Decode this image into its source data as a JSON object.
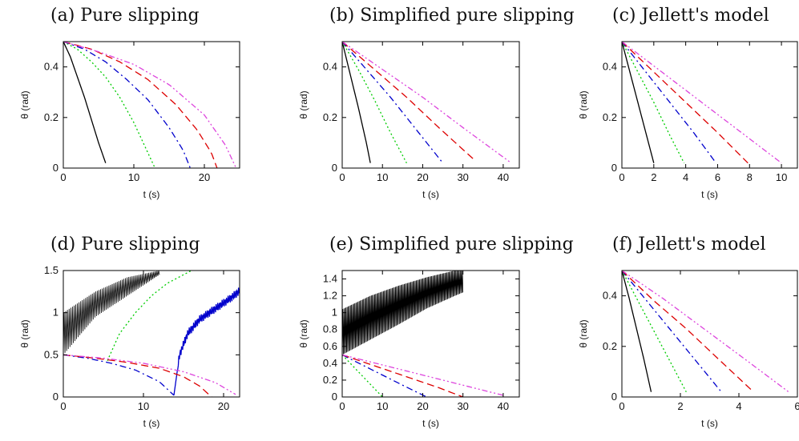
{
  "colors": {
    "black": "#000000",
    "green": "#00cc00",
    "blue": "#0000cc",
    "red": "#dd0000",
    "magenta": "#dd44dd"
  },
  "chart_data": [
    {
      "id": "a",
      "type": "line",
      "title": "(a) Pure slipping",
      "xlabel": "t (s)",
      "ylabel": "θ (rad)",
      "xlim": [
        0,
        25
      ],
      "ylim": [
        0,
        0.5
      ],
      "xticks": [
        0,
        10,
        20
      ],
      "yticks": [
        0,
        0.2,
        0.4
      ],
      "series": [
        {
          "color": "black",
          "style": "solid",
          "x": [
            0,
            1,
            2,
            3,
            4,
            5,
            6
          ],
          "y": [
            0.5,
            0.44,
            0.36,
            0.28,
            0.19,
            0.1,
            0.02
          ]
        },
        {
          "color": "green",
          "style": "dotted",
          "x": [
            0,
            2,
            4,
            6,
            8,
            10,
            12,
            13
          ],
          "y": [
            0.5,
            0.47,
            0.42,
            0.36,
            0.28,
            0.18,
            0.06,
            0.0
          ]
        },
        {
          "color": "blue",
          "style": "dashdot",
          "x": [
            0,
            3,
            6,
            9,
            12,
            15,
            17,
            18
          ],
          "y": [
            0.5,
            0.47,
            0.42,
            0.35,
            0.27,
            0.16,
            0.07,
            0.0
          ]
        },
        {
          "color": "red",
          "style": "dashed",
          "x": [
            0,
            4,
            8,
            12,
            16,
            19,
            21,
            21.8
          ],
          "y": [
            0.5,
            0.47,
            0.42,
            0.35,
            0.25,
            0.15,
            0.06,
            0.0
          ]
        },
        {
          "color": "magenta",
          "style": "dashdotdot",
          "x": [
            0,
            5,
            10,
            15,
            20,
            23,
            24.5
          ],
          "y": [
            0.5,
            0.46,
            0.41,
            0.33,
            0.21,
            0.09,
            0.0
          ]
        }
      ]
    },
    {
      "id": "b",
      "type": "line",
      "title": "(b) Simplified pure slipping",
      "xlabel": "t (s)",
      "ylabel": "θ (rad)",
      "xlim": [
        0,
        44
      ],
      "ylim": [
        0,
        0.5
      ],
      "xticks": [
        0,
        10,
        20,
        30,
        40
      ],
      "yticks": [
        0,
        0.2,
        0.4
      ],
      "series": [
        {
          "color": "black",
          "style": "solid",
          "x": [
            0,
            2,
            4,
            6,
            7
          ],
          "y": [
            0.5,
            0.37,
            0.24,
            0.1,
            0.02
          ]
        },
        {
          "color": "green",
          "style": "dotted",
          "x": [
            0,
            4,
            8,
            12,
            16
          ],
          "y": [
            0.5,
            0.39,
            0.27,
            0.14,
            0.02
          ]
        },
        {
          "color": "blue",
          "style": "dashdot",
          "x": [
            0,
            6,
            12,
            18,
            25
          ],
          "y": [
            0.5,
            0.39,
            0.28,
            0.16,
            0.02
          ]
        },
        {
          "color": "red",
          "style": "dashed",
          "x": [
            0,
            8,
            16,
            24,
            33
          ],
          "y": [
            0.5,
            0.39,
            0.28,
            0.16,
            0.03
          ]
        },
        {
          "color": "magenta",
          "style": "dashdotdot",
          "x": [
            0,
            10,
            20,
            30,
            42
          ],
          "y": [
            0.5,
            0.39,
            0.28,
            0.16,
            0.02
          ]
        }
      ]
    },
    {
      "id": "c",
      "type": "line",
      "title": "(c) Jellett's model",
      "xlabel": "t (s)",
      "ylabel": "θ (rad)",
      "xlim": [
        0,
        11
      ],
      "ylim": [
        0,
        0.5
      ],
      "xticks": [
        0,
        2,
        4,
        6,
        8,
        10
      ],
      "yticks": [
        0,
        0.2,
        0.4
      ],
      "series": [
        {
          "color": "black",
          "style": "solid",
          "x": [
            0,
            0.5,
            1,
            1.5,
            2
          ],
          "y": [
            0.5,
            0.38,
            0.26,
            0.14,
            0.02
          ]
        },
        {
          "color": "green",
          "style": "dotted",
          "x": [
            0,
            1,
            2,
            3,
            3.9
          ],
          "y": [
            0.5,
            0.38,
            0.26,
            0.13,
            0.02
          ]
        },
        {
          "color": "blue",
          "style": "dashdot",
          "x": [
            0,
            1.5,
            3,
            4.5,
            5.9
          ],
          "y": [
            0.5,
            0.38,
            0.26,
            0.14,
            0.02
          ]
        },
        {
          "color": "red",
          "style": "dashed",
          "x": [
            0,
            2,
            4,
            6,
            7.9
          ],
          "y": [
            0.5,
            0.38,
            0.26,
            0.14,
            0.02
          ]
        },
        {
          "color": "magenta",
          "style": "dashdotdot",
          "x": [
            0,
            2.5,
            5,
            7.5,
            10
          ],
          "y": [
            0.5,
            0.38,
            0.26,
            0.14,
            0.02
          ]
        }
      ]
    },
    {
      "id": "d",
      "type": "line",
      "title": "(d) Pure slipping",
      "xlabel": "t (s)",
      "ylabel": "θ (rad)",
      "xlim": [
        0,
        22
      ],
      "ylim": [
        0,
        1.5
      ],
      "xticks": [
        0,
        10,
        20
      ],
      "yticks": [
        0,
        0.5,
        1,
        1.5
      ],
      "series": [
        {
          "color": "black",
          "style": "oscillation",
          "x": [
            0,
            4,
            8,
            12
          ],
          "y": [
            0.5,
            0.95,
            1.2,
            1.45
          ],
          "upper": [
            1.0,
            1.25,
            1.42,
            1.5
          ],
          "periods": 58
        },
        {
          "color": "green",
          "style": "dotted",
          "x": [
            5.5,
            7,
            9,
            11,
            13,
            16
          ],
          "y": [
            0.43,
            0.75,
            1.0,
            1.2,
            1.35,
            1.5
          ]
        },
        {
          "color": "blue",
          "style": "noisy",
          "x": [
            13.8,
            14.5,
            15.5,
            17,
            19,
            21,
            22
          ],
          "y": [
            0.02,
            0.5,
            0.75,
            0.92,
            1.05,
            1.18,
            1.26
          ]
        },
        {
          "color": "blue",
          "style": "dashdot",
          "x": [
            0,
            3,
            6,
            9,
            12,
            13.8
          ],
          "y": [
            0.5,
            0.46,
            0.4,
            0.32,
            0.18,
            0.02
          ]
        },
        {
          "color": "red",
          "style": "dashed",
          "x": [
            0,
            4,
            8,
            12,
            15,
            17,
            18.5
          ],
          "y": [
            0.5,
            0.46,
            0.41,
            0.34,
            0.24,
            0.13,
            0.0
          ]
        },
        {
          "color": "magenta",
          "style": "dashdotdot",
          "x": [
            0,
            5,
            10,
            15,
            19,
            21.5
          ],
          "y": [
            0.5,
            0.46,
            0.4,
            0.3,
            0.17,
            0.03
          ]
        }
      ]
    },
    {
      "id": "e",
      "type": "line",
      "title": "(e) Simplified pure slipping",
      "xlabel": "t (s)",
      "ylabel": "θ (rad)",
      "xlim": [
        0,
        44
      ],
      "ylim": [
        0,
        1.5
      ],
      "xticks": [
        0,
        10,
        20,
        30,
        40
      ],
      "yticks": [
        0,
        0.2,
        0.4,
        0.6,
        0.8,
        1,
        1.2,
        1.4
      ],
      "series": [
        {
          "color": "black",
          "style": "oscillation",
          "x": [
            0,
            7,
            14,
            21,
            28,
            30
          ],
          "y": [
            0.5,
            0.68,
            0.86,
            1.05,
            1.2,
            1.24
          ],
          "upper": [
            1.04,
            1.2,
            1.32,
            1.42,
            1.5,
            1.5
          ],
          "periods": 110
        },
        {
          "color": "green",
          "style": "dotted",
          "x": [
            0,
            3,
            6,
            9,
            10
          ],
          "y": [
            0.5,
            0.35,
            0.2,
            0.05,
            0.0
          ]
        },
        {
          "color": "blue",
          "style": "dashdot",
          "x": [
            0,
            5,
            10,
            15,
            21
          ],
          "y": [
            0.5,
            0.38,
            0.26,
            0.14,
            0.0
          ]
        },
        {
          "color": "red",
          "style": "dashed",
          "x": [
            0,
            8,
            16,
            24,
            30
          ],
          "y": [
            0.5,
            0.37,
            0.24,
            0.11,
            0.0
          ]
        },
        {
          "color": "magenta",
          "style": "dashdotdot",
          "x": [
            0,
            10,
            20,
            30,
            40
          ],
          "y": [
            0.5,
            0.38,
            0.26,
            0.14,
            0.02
          ]
        }
      ]
    },
    {
      "id": "f",
      "type": "line",
      "title": "(f) Jellett's model",
      "xlabel": "t (s)",
      "ylabel": "θ (rad)",
      "xlim": [
        0,
        6
      ],
      "ylim": [
        0,
        0.5
      ],
      "xticks": [
        0,
        2,
        4,
        6
      ],
      "yticks": [
        0,
        0.2,
        0.4
      ],
      "series": [
        {
          "color": "black",
          "style": "solid",
          "x": [
            0,
            0.25,
            0.5,
            0.75,
            1.0
          ],
          "y": [
            0.5,
            0.39,
            0.27,
            0.15,
            0.02
          ]
        },
        {
          "color": "green",
          "style": "dotted",
          "x": [
            0,
            0.55,
            1.1,
            1.65,
            2.2
          ],
          "y": [
            0.5,
            0.38,
            0.26,
            0.14,
            0.02
          ]
        },
        {
          "color": "blue",
          "style": "dashdot",
          "x": [
            0,
            0.85,
            1.7,
            2.55,
            3.4
          ],
          "y": [
            0.5,
            0.38,
            0.26,
            0.14,
            0.02
          ]
        },
        {
          "color": "red",
          "style": "dashed",
          "x": [
            0,
            1.1,
            2.2,
            3.3,
            4.5
          ],
          "y": [
            0.5,
            0.38,
            0.27,
            0.15,
            0.02
          ]
        },
        {
          "color": "magenta",
          "style": "dashdotdot",
          "x": [
            0,
            1.4,
            2.8,
            4.2,
            5.7
          ],
          "y": [
            0.5,
            0.39,
            0.27,
            0.15,
            0.02
          ]
        }
      ]
    }
  ]
}
